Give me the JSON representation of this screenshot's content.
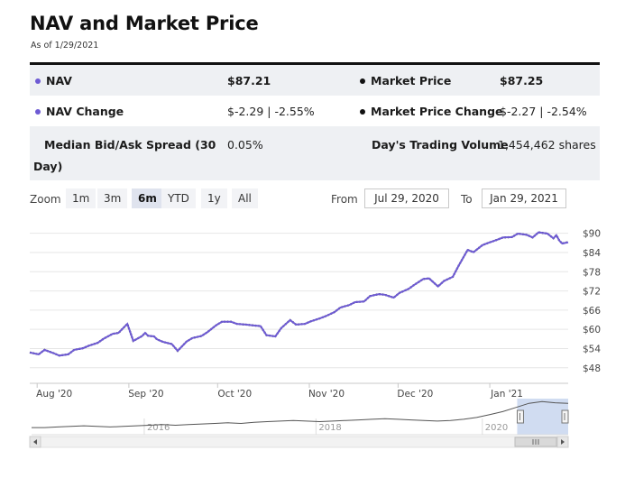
{
  "header": {
    "title": "NAV and Market Price",
    "as_of": "As of 1/29/2021"
  },
  "stats": {
    "nav_label": "NAV",
    "nav_value": "$87.21",
    "market_price_label": "Market Price",
    "market_price_value": "$87.25",
    "nav_change_label": "NAV Change",
    "nav_change_value": "$-2.29 | -2.55%",
    "market_price_change_label": "Market Price Change",
    "market_price_change_value": "$-2.27 | -2.54%",
    "spread_label_line1": "Median Bid/Ask Spread (30",
    "spread_label_line2": "Day)",
    "spread_value": "0.05%",
    "volume_label": "Day's Trading Volume",
    "volume_value": "1,454,462 shares"
  },
  "zoom": {
    "label": "Zoom",
    "buttons": [
      "1m",
      "3m",
      "6m",
      "YTD",
      "1y",
      "All"
    ],
    "active": "6m",
    "from_label": "From",
    "from_value": "Jul 29, 2020",
    "to_label": "To",
    "to_value": "Jan 29, 2021"
  },
  "colors": {
    "nav_line": "#6e5bd4",
    "market_line": "#1a1a1a",
    "grid": "#e6e6e6",
    "navigator_fill": "#c8d6ee"
  },
  "chart_data": {
    "type": "line",
    "title": "NAV and Market Price",
    "ylim": [
      44,
      93
    ],
    "yticks": [
      "$90",
      "$84",
      "$78",
      "$72",
      "$66",
      "$60",
      "$54",
      "$48"
    ],
    "ytick_values": [
      90,
      84,
      78,
      72,
      66,
      60,
      54,
      48
    ],
    "xticks": [
      "Aug '20",
      "Sep '20",
      "Oct '20",
      "Nov '20",
      "Dec '20",
      "Jan '21"
    ],
    "xtick_positions": [
      2.5,
      33.5,
      63.5,
      94.5,
      124.5,
      155.5
    ],
    "series": [
      {
        "name": "NAV",
        "x": [
          0,
          3,
          5,
          8,
          10,
          13,
          15,
          18,
          20,
          23,
          25,
          28,
          30,
          33,
          35,
          38,
          39,
          40,
          42,
          43,
          45,
          48,
          50,
          53,
          55,
          58,
          60,
          63,
          65,
          68,
          70,
          73,
          75,
          78,
          80,
          83,
          85,
          88,
          90,
          93,
          95,
          98,
          100,
          103,
          105,
          108,
          110,
          113,
          115,
          118,
          120,
          123,
          125,
          128,
          130,
          133,
          135,
          138,
          140,
          143,
          145,
          148,
          150,
          153,
          155,
          158,
          160,
          163,
          165,
          168,
          170,
          172,
          175,
          177,
          178,
          179,
          180,
          182
        ],
        "values": [
          52.8,
          52.2,
          53.6,
          52.6,
          51.8,
          52.2,
          53.6,
          54.1,
          54.9,
          55.8,
          57.1,
          58.6,
          58.9,
          61.7,
          56.4,
          57.9,
          58.9,
          58.0,
          57.8,
          56.9,
          56.1,
          55.4,
          53.3,
          56.2,
          57.3,
          57.9,
          59.1,
          61.3,
          62.4,
          62.4,
          61.7,
          61.5,
          61.3,
          61.0,
          58.2,
          57.8,
          60.4,
          62.9,
          61.5,
          61.7,
          62.5,
          63.4,
          64.1,
          65.4,
          66.8,
          67.6,
          68.5,
          68.7,
          70.4,
          71.0,
          70.8,
          69.9,
          71.4,
          72.6,
          73.9,
          75.7,
          75.9,
          73.4,
          75.1,
          76.4,
          79.9,
          84.8,
          84.1,
          86.3,
          87.0,
          88.0,
          88.7,
          88.8,
          89.9,
          89.5,
          88.7,
          90.3,
          89.9,
          88.4,
          89.4,
          87.7,
          86.8,
          87.2
        ]
      },
      {
        "name": "Market Price",
        "x": [
          0,
          3,
          5,
          8,
          10,
          13,
          15,
          18,
          20,
          23,
          25,
          28,
          30,
          33,
          35,
          38,
          39,
          40,
          42,
          43,
          45,
          48,
          50,
          53,
          55,
          58,
          60,
          63,
          65,
          68,
          70,
          73,
          75,
          78,
          80,
          83,
          85,
          88,
          90,
          93,
          95,
          98,
          100,
          103,
          105,
          108,
          110,
          113,
          115,
          118,
          120,
          123,
          125,
          128,
          130,
          133,
          135,
          138,
          140,
          143,
          145,
          148,
          150,
          153,
          155,
          158,
          160,
          163,
          165,
          168,
          170,
          172,
          175,
          177,
          178,
          179,
          180,
          182
        ],
        "values": [
          52.8,
          52.2,
          53.6,
          52.6,
          51.8,
          52.2,
          53.6,
          54.1,
          54.9,
          55.8,
          57.1,
          58.6,
          58.9,
          61.7,
          56.4,
          57.9,
          58.9,
          58.0,
          57.8,
          56.9,
          56.1,
          55.4,
          53.3,
          56.2,
          57.3,
          57.9,
          59.1,
          61.3,
          62.4,
          62.4,
          61.7,
          61.5,
          61.3,
          61.0,
          58.2,
          57.8,
          60.4,
          62.9,
          61.5,
          61.7,
          62.5,
          63.4,
          64.1,
          65.4,
          66.8,
          67.6,
          68.5,
          68.7,
          70.4,
          71.0,
          70.8,
          69.9,
          71.4,
          72.6,
          73.9,
          75.7,
          75.9,
          73.4,
          75.1,
          76.4,
          79.9,
          84.8,
          84.1,
          86.3,
          87.0,
          88.0,
          88.7,
          88.8,
          89.9,
          89.5,
          88.7,
          90.3,
          89.9,
          88.4,
          89.4,
          87.7,
          86.8,
          87.25
        ]
      }
    ],
    "navigator": {
      "year_labels": [
        "2016",
        "2018",
        "2020"
      ],
      "year_positions": [
        0.21,
        0.53,
        0.84
      ],
      "values": [
        46,
        46,
        47,
        48,
        49,
        48,
        47,
        48,
        49,
        50,
        51,
        50,
        51,
        52,
        53,
        54,
        53,
        55,
        56,
        57,
        58,
        57,
        56,
        57,
        58,
        59,
        60,
        61,
        60,
        59,
        58,
        57,
        58,
        60,
        63,
        68,
        73,
        80,
        87,
        90,
        88,
        87
      ],
      "selected_range": [
        0.905,
        1.0
      ]
    }
  }
}
